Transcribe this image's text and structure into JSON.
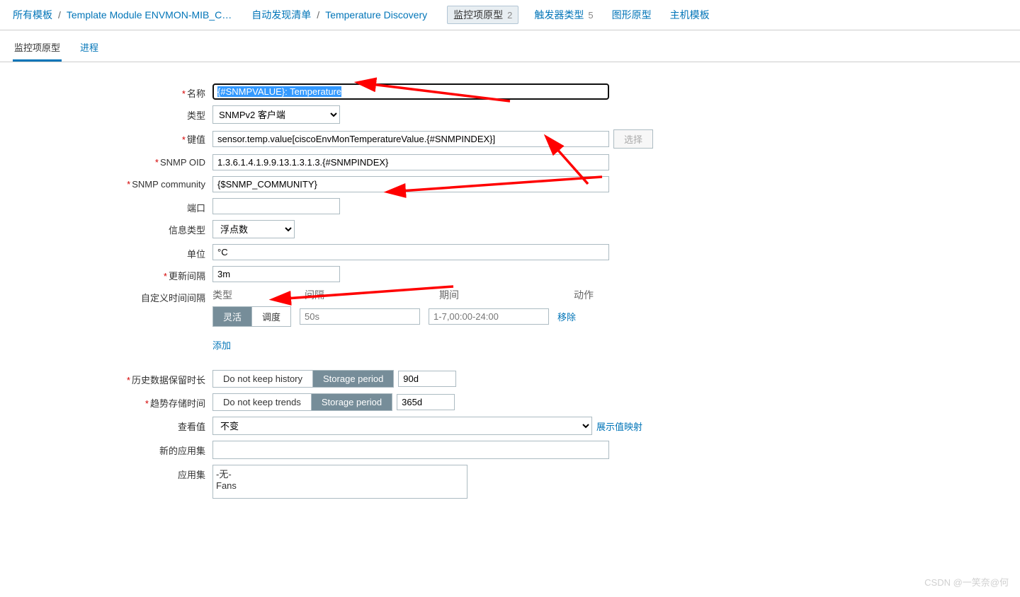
{
  "breadcrumb": {
    "all_templates": "所有模板",
    "template_name": "Template Module ENVMON-MIB_C…",
    "discovery_list": "自动发现清单",
    "discovery_rule": "Temperature Discovery",
    "tab_item_proto": "监控项原型",
    "tab_item_proto_count": "2",
    "tab_trigger": "触发器类型",
    "tab_trigger_count": "5",
    "tab_graph": "图形原型",
    "tab_host": "主机模板"
  },
  "tabs": {
    "item_proto": "监控项原型",
    "process": "进程"
  },
  "labels": {
    "name": "名称",
    "type": "类型",
    "key": "键值",
    "snmp_oid": "SNMP OID",
    "snmp_community": "SNMP community",
    "port": "端口",
    "info_type": "信息类型",
    "units": "单位",
    "update_interval": "更新间隔",
    "custom_intervals": "自定义时间间隔",
    "history": "历史数据保留时长",
    "trends": "趋势存储时间",
    "show_value": "查看值",
    "new_app": "新的应用集",
    "apps": "应用集"
  },
  "fields": {
    "name": "{#SNMPVALUE}: Temperature",
    "type": "SNMPv2 客户端",
    "key": "sensor.temp.value[ciscoEnvMonTemperatureValue.{#SNMPINDEX}]",
    "snmp_oid": "1.3.6.1.4.1.9.9.13.1.3.1.3.{#SNMPINDEX}",
    "snmp_community": "{$SNMP_COMMUNITY}",
    "port": "",
    "info_type": "浮点数",
    "units": "°C",
    "update_interval": "3m",
    "history_period": "90d",
    "trends_period": "365d",
    "show_value": "不变",
    "new_app": ""
  },
  "buttons": {
    "select": "选择",
    "flexible": "灵活",
    "scheduling": "调度",
    "interval_placeholder": "50s",
    "period_placeholder": "1-7,00:00-24:00",
    "remove": "移除",
    "add": "添加",
    "do_not_keep_history": "Do not keep history",
    "storage_period": "Storage period",
    "do_not_keep_trends": "Do not keep trends",
    "show_value_map": "展示值映射"
  },
  "interval_headers": {
    "type": "类型",
    "interval": "间隔",
    "period": "期间",
    "action": "动作"
  },
  "applications": [
    "-无-",
    "Fans"
  ],
  "watermark": "CSDN @一笑奈@何",
  "arrow_color": "#ff0000"
}
